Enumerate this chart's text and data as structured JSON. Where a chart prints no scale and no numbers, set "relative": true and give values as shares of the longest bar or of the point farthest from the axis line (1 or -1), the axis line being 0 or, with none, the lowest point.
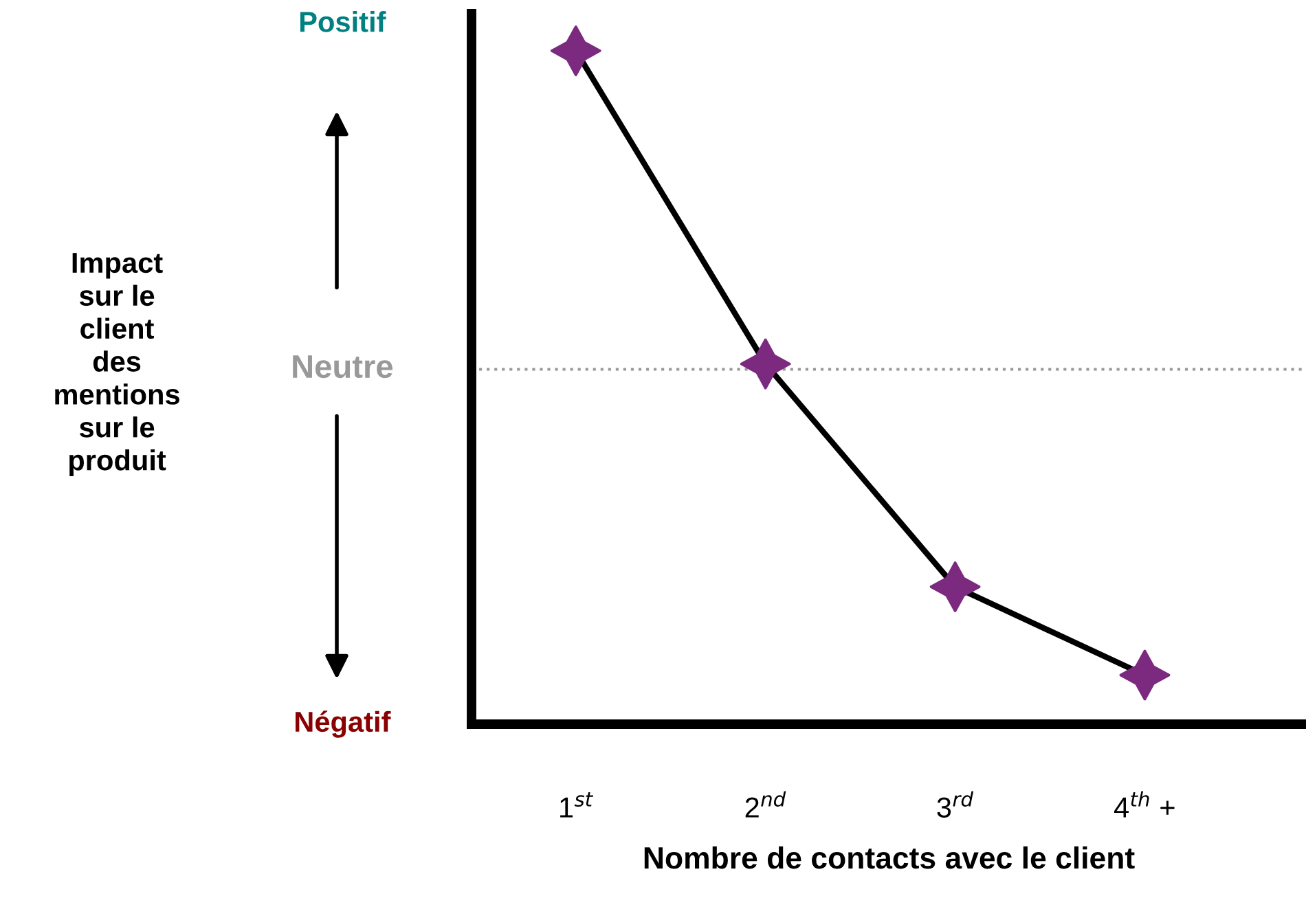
{
  "chart_data": {
    "type": "line",
    "relative": true,
    "categories": [
      "1$^{st}$",
      "2$^{nd}$",
      "3$^{rd}$",
      "4$^{th}$ +"
    ],
    "series": [
      {
        "color": "#000000",
        "values": [
          1,
          0.535,
          0.204,
          0.073
        ]
      }
    ],
    "marker": "star",
    "line_style": "solid",
    "grid": false,
    "xlabel": "Nombre de contacts avec le client",
    "ref_lines": [
      {
        "axis": "y",
        "value": 0.527,
        "label": "Neutre",
        "color": "#999999",
        "line_style": "dotted"
      }
    ],
    "annotations": [
      "Positif",
      "Négatif",
      "Impact\nsur le\nclient\ndes\nmentions\nsur le\nproduit"
    ]
  }
}
